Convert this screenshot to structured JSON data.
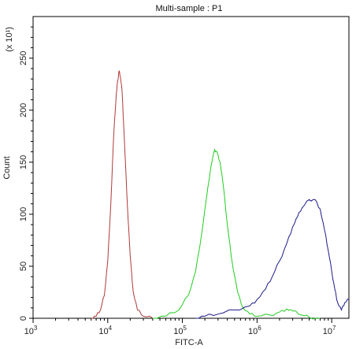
{
  "chart_data": {
    "type": "line",
    "title": "Multi-sample : P1",
    "xlabel": "FITC-A",
    "ylabel": "Count",
    "y_multiplier_label": "(x 10¹)",
    "x_scale": "log",
    "xlim": [
      1000,
      17000000
    ],
    "ylim": [
      0,
      290
    ],
    "x_ticks": [
      {
        "value": 1000,
        "base": "10",
        "exp": "3"
      },
      {
        "value": 10000,
        "base": "10",
        "exp": "4"
      },
      {
        "value": 100000,
        "base": "10",
        "exp": "5"
      },
      {
        "value": 1000000,
        "base": "10",
        "exp": "6"
      },
      {
        "value": 10000000,
        "base": "10",
        "exp": "7"
      }
    ],
    "y_ticks": [
      0,
      50,
      100,
      150,
      200,
      250
    ],
    "grid": false,
    "legend": "none",
    "series": [
      {
        "color": "#b03a3a",
        "points": [
          [
            6000,
            0
          ],
          [
            7000,
            2
          ],
          [
            8000,
            8
          ],
          [
            9000,
            22
          ],
          [
            10000,
            55
          ],
          [
            11000,
            110
          ],
          [
            12000,
            175
          ],
          [
            13000,
            215
          ],
          [
            13600,
            228
          ],
          [
            14200,
            238
          ],
          [
            14800,
            232
          ],
          [
            15500,
            220
          ],
          [
            16500,
            180
          ],
          [
            18000,
            120
          ],
          [
            20000,
            60
          ],
          [
            22000,
            25
          ],
          [
            25000,
            8
          ],
          [
            30000,
            2
          ],
          [
            40000,
            0
          ]
        ]
      },
      {
        "color": "#22cc22",
        "points": [
          [
            40000,
            0
          ],
          [
            60000,
            2
          ],
          [
            90000,
            8
          ],
          [
            120000,
            22
          ],
          [
            150000,
            45
          ],
          [
            180000,
            80
          ],
          [
            210000,
            115
          ],
          [
            240000,
            145
          ],
          [
            270000,
            162
          ],
          [
            290000,
            160
          ],
          [
            320000,
            150
          ],
          [
            350000,
            130
          ],
          [
            400000,
            90
          ],
          [
            450000,
            60
          ],
          [
            550000,
            25
          ],
          [
            650000,
            10
          ],
          [
            800000,
            4
          ],
          [
            1000000,
            2
          ],
          [
            1500000,
            3
          ],
          [
            2000000,
            6
          ],
          [
            2500000,
            9
          ],
          [
            3000000,
            7
          ],
          [
            4000000,
            3
          ],
          [
            5000000,
            1
          ],
          [
            7000000,
            0
          ]
        ]
      },
      {
        "color": "#1a1a8c",
        "points": [
          [
            150000,
            0
          ],
          [
            200000,
            2
          ],
          [
            300000,
            4
          ],
          [
            500000,
            8
          ],
          [
            800000,
            12
          ],
          [
            1000000,
            18
          ],
          [
            1300000,
            28
          ],
          [
            1600000,
            40
          ],
          [
            2000000,
            55
          ],
          [
            2500000,
            72
          ],
          [
            3000000,
            88
          ],
          [
            3500000,
            98
          ],
          [
            4000000,
            106
          ],
          [
            5000000,
            114
          ],
          [
            6000000,
            114
          ],
          [
            7000000,
            105
          ],
          [
            8000000,
            85
          ],
          [
            9000000,
            65
          ],
          [
            10000000,
            45
          ],
          [
            11000000,
            28
          ],
          [
            12000000,
            15
          ],
          [
            13500000,
            8
          ],
          [
            15000000,
            15
          ],
          [
            17000000,
            18
          ]
        ]
      }
    ]
  }
}
